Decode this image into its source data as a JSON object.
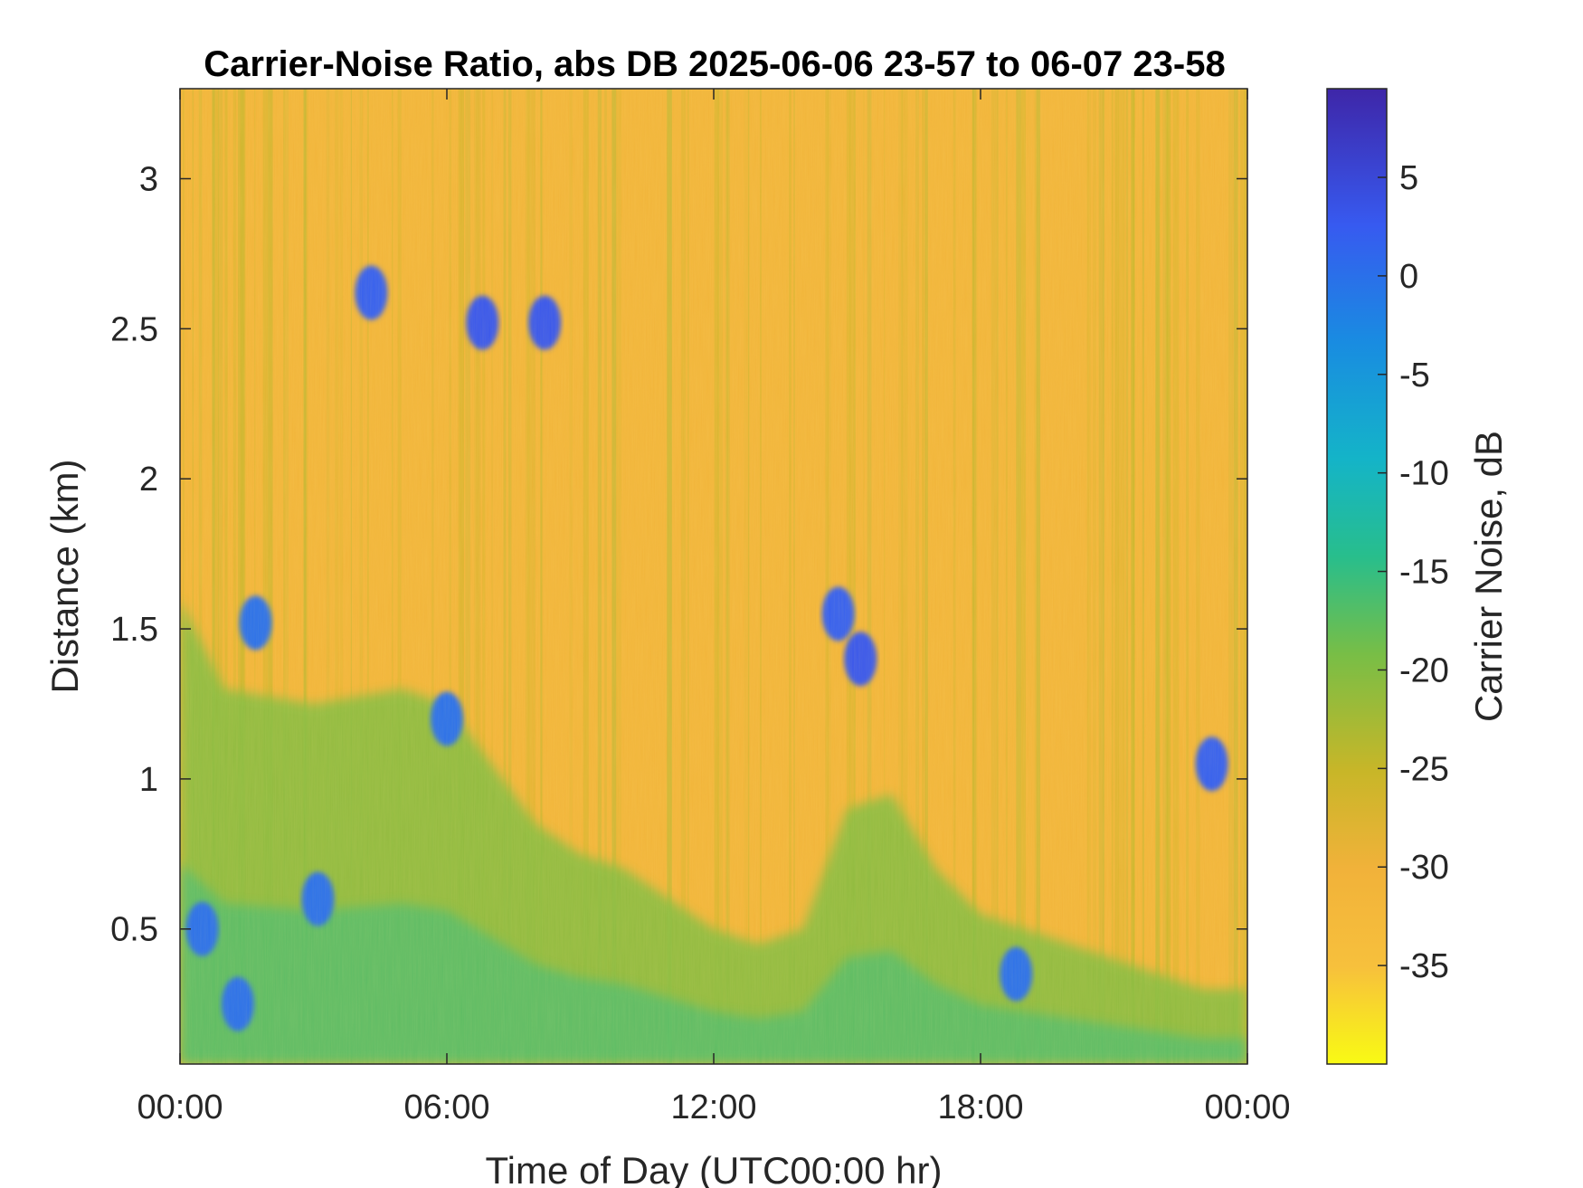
{
  "chart_data": {
    "type": "heatmap",
    "title": "Carrier-Noise Ratio, abs DB 2025-06-06 23-57 to 06-07 23-58",
    "xlabel": "Time of Day (UTC00:00 hr)",
    "ylabel": "Distance (km)",
    "xlim": [
      0,
      24
    ],
    "ylim": [
      0.05,
      3.3
    ],
    "x_ticks": [
      {
        "value": 0,
        "label": "00:00"
      },
      {
        "value": 6,
        "label": "06:00"
      },
      {
        "value": 12,
        "label": "12:00"
      },
      {
        "value": 18,
        "label": "18:00"
      },
      {
        "value": 24,
        "label": "00:00"
      }
    ],
    "y_ticks": [
      {
        "value": 0.5,
        "label": "0.5"
      },
      {
        "value": 1,
        "label": "1"
      },
      {
        "value": 1.5,
        "label": "1.5"
      },
      {
        "value": 2,
        "label": "2"
      },
      {
        "value": 2.5,
        "label": "2.5"
      },
      {
        "value": 3,
        "label": "3"
      }
    ],
    "colorbar": {
      "label": "Carrier Noise, dB",
      "range": [
        -40,
        9.5
      ],
      "ticks": [
        {
          "value": 5,
          "label": "5"
        },
        {
          "value": 0,
          "label": "0"
        },
        {
          "value": -5,
          "label": "-5"
        },
        {
          "value": -10,
          "label": "-10"
        },
        {
          "value": -15,
          "label": "-15"
        },
        {
          "value": -20,
          "label": "-20"
        },
        {
          "value": -25,
          "label": "-25"
        },
        {
          "value": -30,
          "label": "-30"
        },
        {
          "value": -35,
          "label": "-35"
        }
      ]
    },
    "colormap": "parula-reversed",
    "background_cnr_db": -31,
    "features": [
      {
        "kind": "boundary_layer",
        "description_value": "near-surface band",
        "cnr_db": -20,
        "top_km": [
          [
            0,
            1.6
          ],
          [
            1,
            1.3
          ],
          [
            3,
            1.25
          ],
          [
            5,
            1.3
          ],
          [
            6,
            1.25
          ],
          [
            7,
            1.05
          ],
          [
            8,
            0.85
          ],
          [
            9,
            0.75
          ],
          [
            10,
            0.7
          ],
          [
            11,
            0.6
          ],
          [
            12,
            0.5
          ],
          [
            13,
            0.45
          ],
          [
            14,
            0.5
          ],
          [
            15,
            0.9
          ],
          [
            16,
            0.95
          ],
          [
            17,
            0.7
          ],
          [
            18,
            0.55
          ],
          [
            19,
            0.5
          ],
          [
            20,
            0.45
          ],
          [
            21,
            0.4
          ],
          [
            22,
            0.35
          ],
          [
            23,
            0.3
          ],
          [
            24,
            0.3
          ]
        ]
      },
      {
        "kind": "cloud",
        "x": 1.7,
        "y": 1.52,
        "cnr_db": 0
      },
      {
        "kind": "cloud",
        "x": 3.1,
        "y": 0.6,
        "cnr_db": 0
      },
      {
        "kind": "cloud",
        "x": 4.3,
        "y": 2.62,
        "cnr_db": 2
      },
      {
        "kind": "cloud",
        "x": 6.8,
        "y": 2.52,
        "cnr_db": 3
      },
      {
        "kind": "cloud",
        "x": 8.2,
        "y": 2.52,
        "cnr_db": 3
      },
      {
        "kind": "cloud",
        "x": 14.8,
        "y": 1.55,
        "cnr_db": 2
      },
      {
        "kind": "cloud",
        "x": 15.3,
        "y": 1.4,
        "cnr_db": 3
      },
      {
        "kind": "cloud",
        "x": 0.5,
        "y": 0.5,
        "cnr_db": 0
      },
      {
        "kind": "cloud",
        "x": 1.3,
        "y": 0.25,
        "cnr_db": 0
      },
      {
        "kind": "cloud",
        "x": 6.0,
        "y": 1.2,
        "cnr_db": 0
      },
      {
        "kind": "cloud",
        "x": 23.2,
        "y": 1.05,
        "cnr_db": 2
      },
      {
        "kind": "cloud",
        "x": 18.8,
        "y": 0.35,
        "cnr_db": 0
      }
    ]
  }
}
